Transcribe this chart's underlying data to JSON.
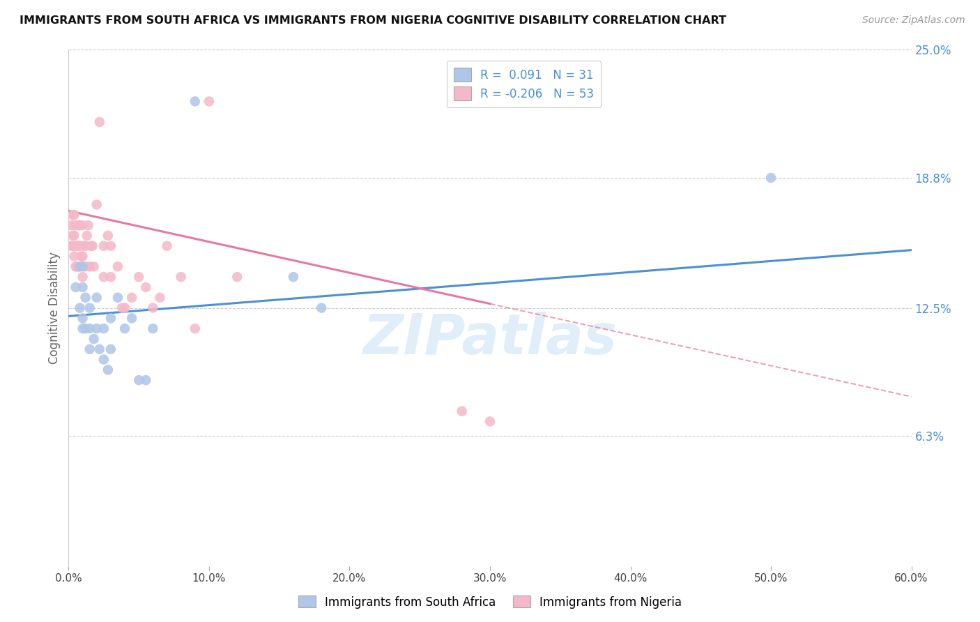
{
  "title": "IMMIGRANTS FROM SOUTH AFRICA VS IMMIGRANTS FROM NIGERIA COGNITIVE DISABILITY CORRELATION CHART",
  "source": "Source: ZipAtlas.com",
  "xlabel_ticks": [
    "0.0%",
    "10.0%",
    "20.0%",
    "30.0%",
    "40.0%",
    "50.0%",
    "60.0%"
  ],
  "xlabel_vals": [
    0.0,
    0.1,
    0.2,
    0.3,
    0.4,
    0.5,
    0.6
  ],
  "ylabel_ticks": [
    "25.0%",
    "18.8%",
    "12.5%",
    "6.3%"
  ],
  "ylabel_vals": [
    0.25,
    0.188,
    0.125,
    0.063
  ],
  "ylabel_label": "Cognitive Disability",
  "legend_label1": "Immigrants from South Africa",
  "legend_label2": "Immigrants from Nigeria",
  "R1": 0.091,
  "N1": 31,
  "R2": -0.206,
  "N2": 53,
  "color1": "#aec6e8",
  "color2": "#f4b8c8",
  "line_color1": "#4a90d9",
  "line_color2": "#e8799a",
  "watermark": "ZIPatlas",
  "xlim": [
    0.0,
    0.6
  ],
  "ylim": [
    0.0,
    0.25
  ],
  "south_africa_x": [
    0.005,
    0.008,
    0.008,
    0.01,
    0.01,
    0.01,
    0.01,
    0.012,
    0.012,
    0.015,
    0.015,
    0.015,
    0.018,
    0.02,
    0.02,
    0.022,
    0.025,
    0.025,
    0.028,
    0.03,
    0.03,
    0.035,
    0.04,
    0.045,
    0.05,
    0.055,
    0.06,
    0.09,
    0.16,
    0.18,
    0.5
  ],
  "south_africa_y": [
    0.135,
    0.125,
    0.145,
    0.115,
    0.12,
    0.135,
    0.145,
    0.115,
    0.13,
    0.105,
    0.115,
    0.125,
    0.11,
    0.115,
    0.13,
    0.105,
    0.1,
    0.115,
    0.095,
    0.105,
    0.12,
    0.13,
    0.115,
    0.12,
    0.09,
    0.09,
    0.115,
    0.225,
    0.14,
    0.125,
    0.188
  ],
  "nigeria_x": [
    0.002,
    0.002,
    0.003,
    0.003,
    0.003,
    0.004,
    0.004,
    0.004,
    0.005,
    0.005,
    0.005,
    0.006,
    0.006,
    0.007,
    0.007,
    0.007,
    0.008,
    0.008,
    0.009,
    0.01,
    0.01,
    0.01,
    0.011,
    0.012,
    0.012,
    0.013,
    0.014,
    0.015,
    0.016,
    0.017,
    0.018,
    0.02,
    0.022,
    0.025,
    0.025,
    0.028,
    0.03,
    0.03,
    0.035,
    0.038,
    0.04,
    0.045,
    0.05,
    0.055,
    0.06,
    0.065,
    0.07,
    0.08,
    0.09,
    0.1,
    0.12,
    0.28,
    0.3
  ],
  "nigeria_y": [
    0.155,
    0.165,
    0.155,
    0.16,
    0.17,
    0.15,
    0.16,
    0.17,
    0.145,
    0.155,
    0.165,
    0.145,
    0.155,
    0.145,
    0.155,
    0.165,
    0.155,
    0.165,
    0.15,
    0.14,
    0.15,
    0.165,
    0.155,
    0.145,
    0.155,
    0.16,
    0.165,
    0.145,
    0.155,
    0.155,
    0.145,
    0.175,
    0.215,
    0.14,
    0.155,
    0.16,
    0.14,
    0.155,
    0.145,
    0.125,
    0.125,
    0.13,
    0.14,
    0.135,
    0.125,
    0.13,
    0.155,
    0.14,
    0.115,
    0.225,
    0.14,
    0.075,
    0.07
  ],
  "trend_sa_x0": 0.0,
  "trend_sa_x1": 0.6,
  "trend_sa_y0": 0.121,
  "trend_sa_y1": 0.153,
  "trend_ng_x0": 0.0,
  "trend_ng_x1": 0.3,
  "trend_ng_y0": 0.172,
  "trend_ng_y1": 0.127,
  "trend_ng_dash_x0": 0.3,
  "trend_ng_dash_x1": 0.6,
  "trend_ng_dash_y0": 0.127,
  "trend_ng_dash_y1": 0.082
}
